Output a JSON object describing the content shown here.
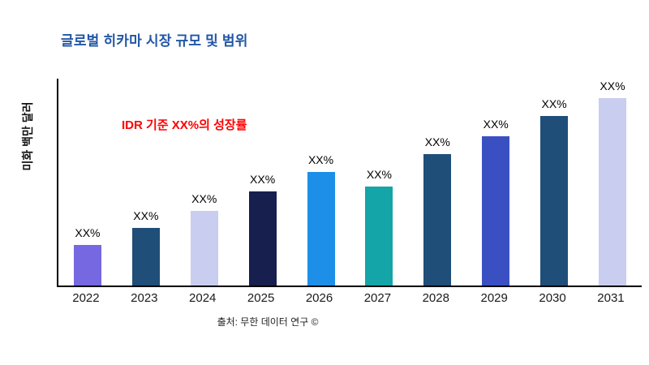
{
  "header": {
    "title": "글로벌 히카마 시장 규모 및 범위",
    "title_color": "#2156a5"
  },
  "chart_data": {
    "type": "bar",
    "title": "글로벌 히카마 시장 규모 및 범위",
    "xlabel": "",
    "ylabel": "미화 백만 달러",
    "categories": [
      "2022",
      "2023",
      "2024",
      "2025",
      "2026",
      "2027",
      "2028",
      "2029",
      "2030",
      "2031"
    ],
    "values": [
      50,
      71,
      92,
      116,
      140,
      122,
      162,
      184,
      209,
      231
    ],
    "value_labels": [
      "XX%",
      "XX%",
      "XX%",
      "XX%",
      "XX%",
      "XX%",
      "XX%",
      "XX%",
      "XX%",
      "XX%"
    ],
    "bar_colors": [
      "#7668e0",
      "#1f4e79",
      "#c9cdf0",
      "#161f4e",
      "#1e8fe8",
      "#14a5a8",
      "#1f4e79",
      "#3a50c2",
      "#1f4e79",
      "#c9cdf0"
    ],
    "ylim": [
      0,
      255
    ],
    "grid": false,
    "legend": null,
    "annotation": {
      "text": "IDR 기준 XX%의 성장률",
      "color": "#ff0000"
    }
  },
  "footer": {
    "source": "출처: 무한 데이터 연구 ©"
  }
}
